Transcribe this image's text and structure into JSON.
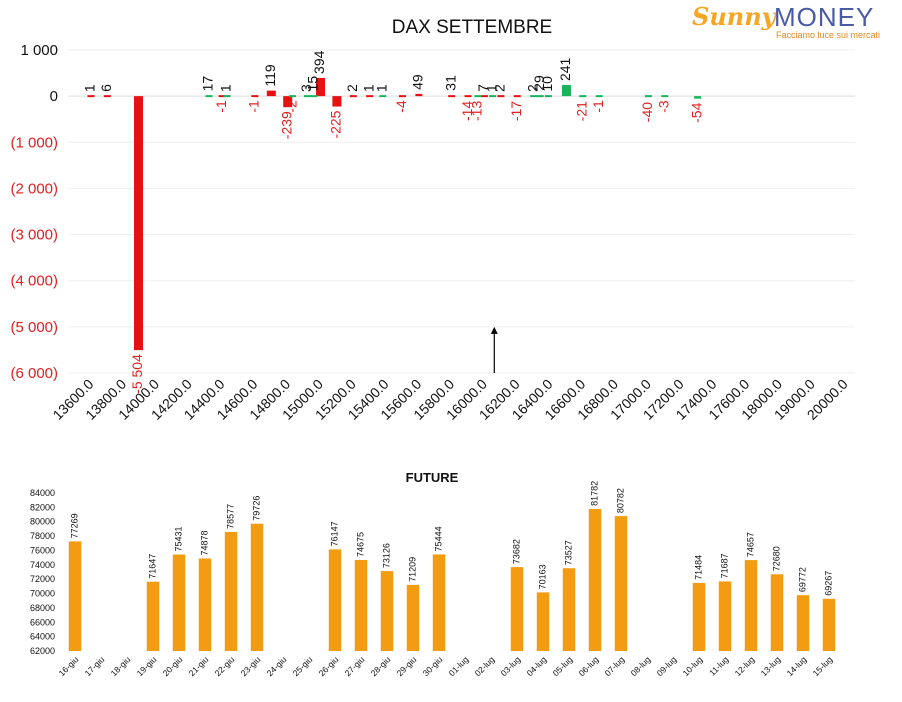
{
  "logo": {
    "word1": "Sunny",
    "word2": "MONEY",
    "tagline": "Facciamo luce sui mercati"
  },
  "colors": {
    "negative": "#e81010",
    "positive": "#18b45c",
    "future": "#f39c12",
    "negative_label": "#e02020"
  },
  "chart_data": [
    {
      "type": "bar",
      "title": "DAX SETTEMBRE",
      "categories": [
        "13600.0",
        "13800.0",
        "14000.0",
        "14200.0",
        "14400.0",
        "14600.0",
        "14800.0",
        "15000.0",
        "15200.0",
        "15400.0",
        "15600.0",
        "15800.0",
        "16000.0",
        "16200.0",
        "16400.0",
        "16600.0",
        "16800.0",
        "17000.0",
        "17200.0",
        "17400.0",
        "17600.0",
        "18000.0",
        "19000.0",
        "20000.0"
      ],
      "ylim": [
        -6000,
        1000
      ],
      "yticks": [
        1000,
        0,
        -1000,
        -2000,
        -3000,
        -4000,
        -5000,
        -6000
      ],
      "ytick_labels": [
        "1 000",
        "0",
        "(1 000)",
        "(2 000)",
        "(3 000)",
        "(4 000)",
        "(5 000)",
        "(6 000)"
      ],
      "grid": true,
      "series": [
        {
          "color": "#e81010",
          "bars": [
            {
              "x": 0.7,
              "v": 1,
              "label": "1"
            },
            {
              "x": 1.2,
              "v": 6,
              "label": "6"
            },
            {
              "x": 2.15,
              "v": -5504,
              "label": "-5 504"
            },
            {
              "x": 4.7,
              "v": -1,
              "label": "-1"
            },
            {
              "x": 5.7,
              "v": -1,
              "label": "-1"
            },
            {
              "x": 6.2,
              "v": 119,
              "label": "119"
            },
            {
              "x": 6.7,
              "v": -239,
              "label": "-239"
            },
            {
              "x": 7.7,
              "v": 394,
              "label": "394"
            },
            {
              "x": 8.2,
              "v": -225,
              "label": "-225"
            },
            {
              "x": 8.7,
              "v": 2,
              "label": "2"
            },
            {
              "x": 9.2,
              "v": 1,
              "label": "1"
            },
            {
              "x": 10.2,
              "v": -4,
              "label": "-4"
            },
            {
              "x": 10.7,
              "v": 49,
              "label": "49"
            },
            {
              "x": 11.7,
              "v": 31,
              "label": "31"
            },
            {
              "x": 12.2,
              "v": -14,
              "label": "-14"
            },
            {
              "x": 12.7,
              "v": 7,
              "label": "7"
            },
            {
              "x": 13.2,
              "v": 2,
              "label": "2"
            },
            {
              "x": 13.7,
              "v": -17,
              "label": "-17"
            }
          ]
        },
        {
          "color": "#18b45c",
          "bars": [
            {
              "x": 4.3,
              "v": 17,
              "label": "17"
            },
            {
              "x": 4.85,
              "v": 1,
              "label": "1"
            },
            {
              "x": 6.85,
              "v": -2,
              "label": "-2"
            },
            {
              "x": 7.3,
              "v": 3,
              "label": "3"
            },
            {
              "x": 7.5,
              "v": 15,
              "label": "15"
            },
            {
              "x": 9.6,
              "v": 1,
              "label": "1"
            },
            {
              "x": 12.5,
              "v": -13,
              "label": "-13"
            },
            {
              "x": 12.95,
              "v": 1,
              "label": "1"
            },
            {
              "x": 14.2,
              "v": 2,
              "label": "2"
            },
            {
              "x": 14.4,
              "v": 29,
              "label": "29"
            },
            {
              "x": 14.65,
              "v": 10,
              "label": "10"
            },
            {
              "x": 15.2,
              "v": 241,
              "label": "241"
            },
            {
              "x": 15.7,
              "v": -21,
              "label": "-21"
            },
            {
              "x": 16.2,
              "v": -1,
              "label": "-1"
            },
            {
              "x": 17.7,
              "v": -40,
              "label": "-40"
            },
            {
              "x": 18.2,
              "v": -3,
              "label": "-3"
            },
            {
              "x": 19.2,
              "v": -54,
              "label": "-54"
            }
          ]
        }
      ],
      "annotations": [
        {
          "type": "arrow",
          "x": 13.0,
          "y_from": -6000,
          "y_to": -5000
        }
      ]
    },
    {
      "type": "bar",
      "title": "FUTURE",
      "categories": [
        "16-giu",
        "17-giu",
        "18-giu",
        "19-giu",
        "20-giu",
        "21-giu",
        "22-giu",
        "23-giu",
        "24-giu",
        "25-giu",
        "26-giu",
        "27-giu",
        "28-giu",
        "29-giu",
        "30-giu",
        "01-lug",
        "02-lug",
        "03-lug",
        "04-lug",
        "05-lug",
        "06-lug",
        "07-lug",
        "08-lug",
        "09-lug",
        "10-lug",
        "11-lug",
        "12-lug",
        "13-lug",
        "14-lug",
        "15-lug"
      ],
      "values": [
        77269,
        null,
        null,
        71647,
        75431,
        74878,
        78577,
        79726,
        null,
        null,
        76147,
        74675,
        73126,
        71209,
        75444,
        null,
        null,
        73682,
        70163,
        73527,
        81782,
        80782,
        null,
        null,
        71484,
        71687,
        74657,
        72680,
        69772,
        69267
      ],
      "data_labels": [
        "77269",
        "",
        "",
        "71647",
        "75431",
        "74878",
        "78577",
        "79726",
        "",
        "",
        "76147",
        "74675",
        "73126",
        "71209",
        "75444",
        "",
        "",
        "73682",
        "70163",
        "73527",
        "81782",
        "80782",
        "",
        "",
        "71484",
        "71687",
        "74657",
        "72680",
        "69772",
        "69267"
      ],
      "ylim": [
        62000,
        84000
      ],
      "yticks": [
        84000,
        82000,
        80000,
        78000,
        76000,
        74000,
        72000,
        70000,
        68000,
        66000,
        64000,
        62000
      ],
      "ytick_labels": [
        "84000",
        "82000",
        "80000",
        "78000",
        "76000",
        "74000",
        "72000",
        "70000",
        "68000",
        "66000",
        "64000",
        "62000"
      ],
      "color": "#f39c12",
      "grid": false
    }
  ]
}
